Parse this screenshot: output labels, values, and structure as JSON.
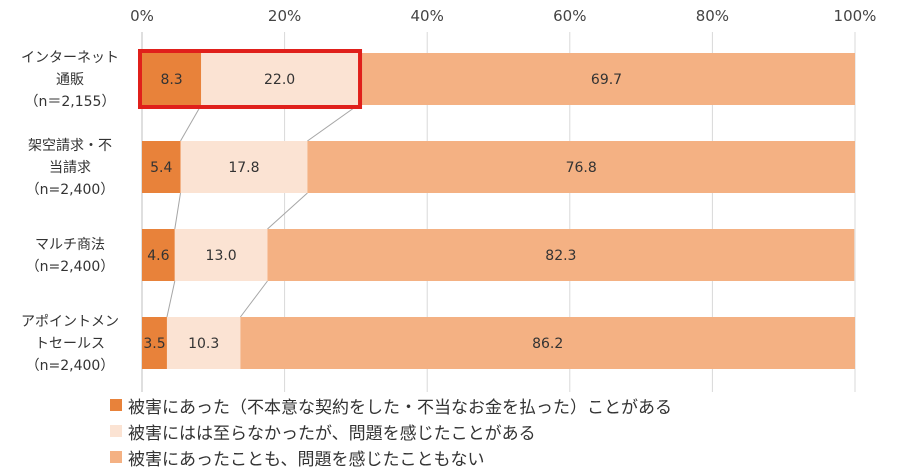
{
  "chart_data": {
    "type": "bar",
    "orientation": "horizontal",
    "stacked": true,
    "xlim": [
      0,
      100
    ],
    "x_ticks": [
      "0%",
      "20%",
      "40%",
      "60%",
      "80%",
      "100%"
    ],
    "categories": [
      [
        "インターネット",
        "通販",
        "（n＝2,155）"
      ],
      [
        "架空請求・不",
        "当請求",
        "（n=2,400）"
      ],
      [
        "マルチ商法",
        "（n=2,400）"
      ],
      [
        "アポイントメン",
        "トセールス",
        "（n=2,400）"
      ]
    ],
    "series": [
      {
        "name": "被害にあった（不本意な契約をした・不当なお金を払った）ことがある",
        "color": "#E8823A",
        "values": [
          8.3,
          5.4,
          4.6,
          3.5
        ]
      },
      {
        "name": "被害にはは至らなかったが、問題を感じたことがある",
        "color": "#FBE3D3",
        "values": [
          22.0,
          17.8,
          13.0,
          10.3
        ]
      },
      {
        "name": "被害にあったことも、問題を感じたこともない",
        "color": "#F4B183",
        "values": [
          69.7,
          76.8,
          82.3,
          86.2
        ]
      }
    ],
    "value_labels": [
      [
        "8.3",
        "22.0",
        "69.7"
      ],
      [
        "5.4",
        "17.8",
        "76.8"
      ],
      [
        "4.6",
        "13.0",
        "82.3"
      ],
      [
        "3.5",
        "10.3",
        "86.2"
      ]
    ],
    "highlight": {
      "category_index": 0,
      "series_indices": [
        0,
        1
      ],
      "color": "#E0201B"
    },
    "connector_lines": true,
    "grid": true,
    "legend_position": "bottom-left"
  }
}
